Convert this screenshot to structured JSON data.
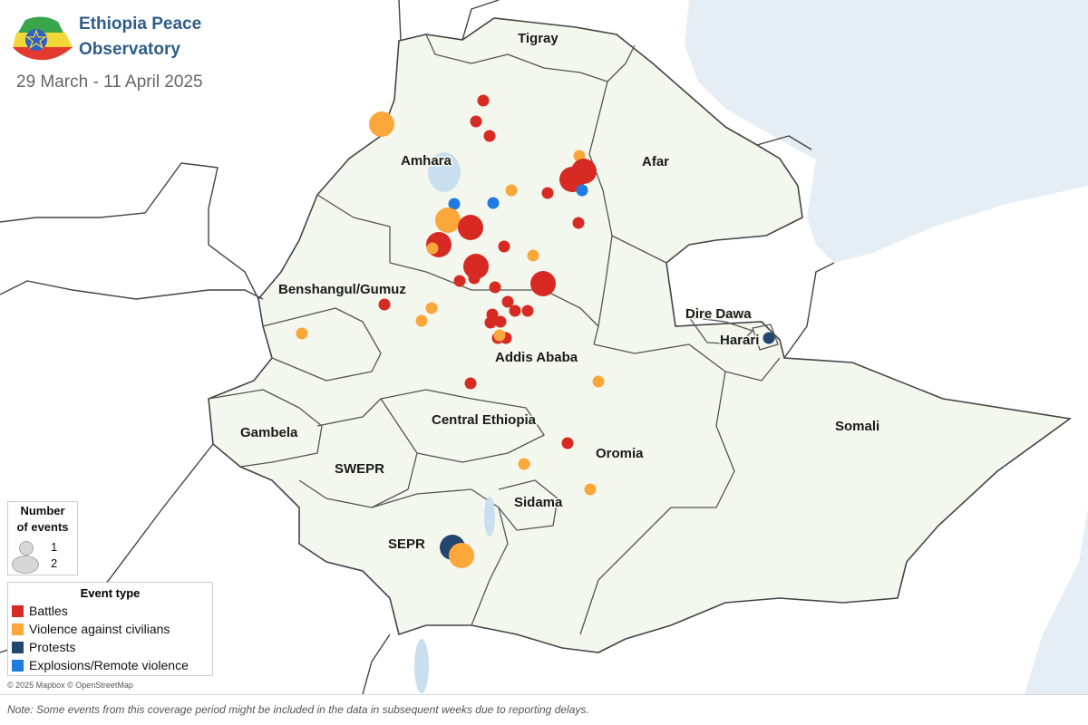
{
  "header": {
    "title_line1": "Ethiopia Peace",
    "title_line2": "Observatory",
    "date_range": "29 March - 11 April 2025"
  },
  "colors": {
    "battles": "#d62a22",
    "violence_against_civilians": "#fba73a",
    "protests": "#234670",
    "explosions_remote_violence": "#1f7be0",
    "land": "#f4f7ee",
    "water": "#e6eef5",
    "border": "#444444",
    "title": "#2f5d8a"
  },
  "regions": [
    {
      "id": "tigray",
      "name": "Tigray"
    },
    {
      "id": "amhara",
      "name": "Amhara"
    },
    {
      "id": "afar",
      "name": "Afar"
    },
    {
      "id": "benshangul",
      "name": "Benshangul/Gumuz"
    },
    {
      "id": "dire-dawa",
      "name": "Dire Dawa"
    },
    {
      "id": "harari",
      "name": "Harari"
    },
    {
      "id": "addis-ababa",
      "name": "Addis Ababa"
    },
    {
      "id": "somali",
      "name": "Somali"
    },
    {
      "id": "gambela",
      "name": "Gambela"
    },
    {
      "id": "central-ethiopia",
      "name": "Central Ethiopia"
    },
    {
      "id": "oromia",
      "name": "Oromia"
    },
    {
      "id": "swepr",
      "name": "SWEPR"
    },
    {
      "id": "sidama",
      "name": "Sidama"
    },
    {
      "id": "sepr",
      "name": "SEPR"
    }
  ],
  "events": [
    {
      "type": "battles",
      "count": 1,
      "near": "Amhara"
    },
    {
      "type": "battles",
      "count": 1,
      "near": "Amhara"
    },
    {
      "type": "battles",
      "count": 1,
      "near": "Amhara"
    },
    {
      "type": "violence_against_civilians",
      "count": 2,
      "near": "Amhara"
    },
    {
      "type": "violence_against_civilians",
      "count": 1,
      "near": "Amhara"
    },
    {
      "type": "battles",
      "count": 2,
      "near": "Amhara"
    },
    {
      "type": "battles",
      "count": 2,
      "near": "Amhara"
    },
    {
      "type": "battles",
      "count": 1,
      "near": "Amhara"
    },
    {
      "type": "explosions_remote_violence",
      "count": 1,
      "near": "Amhara"
    },
    {
      "type": "explosions_remote_violence",
      "count": 1,
      "near": "Amhara"
    },
    {
      "type": "explosions_remote_violence",
      "count": 1,
      "near": "Amhara"
    },
    {
      "type": "violence_against_civilians",
      "count": 1,
      "near": "Amhara"
    },
    {
      "type": "battles",
      "count": 1,
      "near": "Amhara"
    },
    {
      "type": "violence_against_civilians",
      "count": 2,
      "near": "Amhara"
    },
    {
      "type": "battles",
      "count": 2,
      "near": "Amhara"
    },
    {
      "type": "battles",
      "count": 2,
      "near": "Amhara"
    },
    {
      "type": "violence_against_civilians",
      "count": 1,
      "near": "Amhara"
    },
    {
      "type": "battles",
      "count": 1,
      "near": "Amhara"
    },
    {
      "type": "violence_against_civilians",
      "count": 1,
      "near": "Amhara"
    },
    {
      "type": "battles",
      "count": 2,
      "near": "Amhara"
    },
    {
      "type": "battles",
      "count": 2,
      "near": "Amhara"
    },
    {
      "type": "battles",
      "count": 1,
      "near": "Amhara"
    },
    {
      "type": "battles",
      "count": 1,
      "near": "Amhara"
    },
    {
      "type": "battles",
      "count": 1,
      "near": "Amhara"
    },
    {
      "type": "battles",
      "count": 1,
      "near": "Oromia"
    },
    {
      "type": "battles",
      "count": 1,
      "near": "Oromia"
    },
    {
      "type": "battles",
      "count": 1,
      "near": "Oromia"
    },
    {
      "type": "battles",
      "count": 1,
      "near": "Oromia"
    },
    {
      "type": "violence_against_civilians",
      "count": 1,
      "near": "Oromia"
    },
    {
      "type": "battles",
      "count": 1,
      "near": "Oromia"
    },
    {
      "type": "battles",
      "count": 1,
      "near": "Oromia"
    },
    {
      "type": "battles",
      "count": 1,
      "near": "Oromia"
    },
    {
      "type": "battles",
      "count": 1,
      "near": "Oromia"
    },
    {
      "type": "battles",
      "count": 1,
      "near": "Oromia"
    },
    {
      "type": "violence_against_civilians",
      "count": 1,
      "near": "Oromia"
    },
    {
      "type": "violence_against_civilians",
      "count": 1,
      "near": "Oromia"
    },
    {
      "type": "battles",
      "count": 1,
      "near": "Benshangul/Gumuz"
    },
    {
      "type": "violence_against_civilians",
      "count": 1,
      "near": "Benshangul/Gumuz"
    },
    {
      "type": "violence_against_civilians",
      "count": 1,
      "near": "Benshangul/Gumuz"
    },
    {
      "type": "battles",
      "count": 1,
      "near": "Benshangul/Gumuz"
    },
    {
      "type": "battles",
      "count": 1,
      "near": "Oromia"
    },
    {
      "type": "violence_against_civilians",
      "count": 1,
      "near": "Oromia"
    },
    {
      "type": "violence_against_civilians",
      "count": 1,
      "near": "Oromia"
    },
    {
      "type": "violence_against_civilians",
      "count": 1,
      "near": "Sidama"
    },
    {
      "type": "protests",
      "count": 1,
      "near": "Oromia"
    },
    {
      "type": "protests",
      "count": 2,
      "near": "Harari"
    },
    {
      "type": "violence_against_civilians",
      "count": 2,
      "near": "SEPR"
    },
    {
      "type": "violence_against_civilians",
      "count": 1,
      "near": "SEPR"
    },
    {
      "type": "violence_against_civilians",
      "count": 2,
      "near": "Amhara"
    }
  ],
  "size_legend": {
    "title_line1": "Number",
    "title_line2": "of events",
    "items": [
      {
        "label": "1",
        "value": 1
      },
      {
        "label": "2",
        "value": 2
      }
    ]
  },
  "type_legend": {
    "title": "Event type",
    "items": [
      {
        "key": "battles",
        "label": "Battles"
      },
      {
        "key": "violence_against_civilians",
        "label": "Violence against civilians"
      },
      {
        "key": "protests",
        "label": "Protests"
      },
      {
        "key": "explosions_remote_violence",
        "label": "Explosions/Remote violence"
      }
    ]
  },
  "attribution": "© 2025 Mapbox © OpenStreetMap",
  "note": "Note: Some events from this coverage period might be included in the data in subsequent weeks due to reporting delays."
}
